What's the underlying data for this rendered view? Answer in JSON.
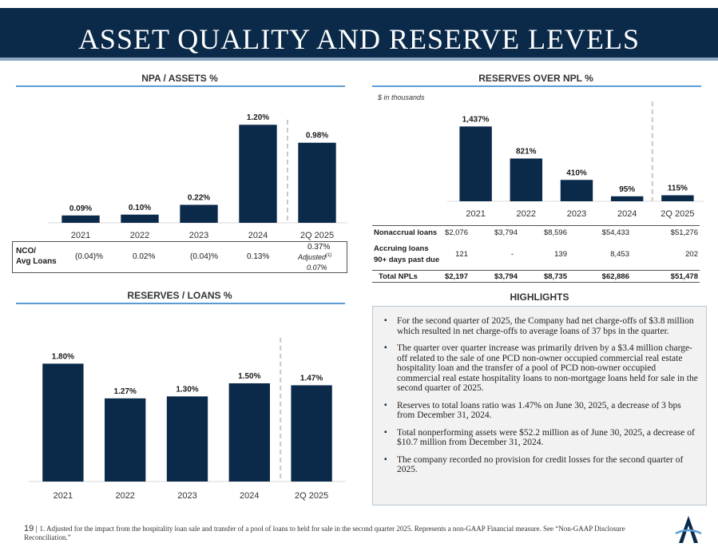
{
  "title": "ASSET QUALITY AND RESERVE LEVELS",
  "sections": {
    "npa_title": "NPA / ASSETS %",
    "reserves_npl_title": "RESERVES OVER NPL %",
    "reserves_loans_title": "RESERVES / LOANS %",
    "highlights_title": "HIGHLIGHTS",
    "in_thousands": "$ in thousands"
  },
  "chart_data": [
    {
      "type": "bar",
      "title": "NPA / ASSETS %",
      "categories": [
        "2021",
        "2022",
        "2023",
        "2024",
        "2Q 2025"
      ],
      "values": [
        0.09,
        0.1,
        0.22,
        1.2,
        0.98
      ],
      "labels": [
        "0.09%",
        "0.10%",
        "0.22%",
        "1.20%",
        "0.98%"
      ],
      "ylim": [
        0,
        1.3
      ],
      "color": "#0b2a4a"
    },
    {
      "type": "bar",
      "title": "RESERVES OVER NPL %",
      "categories": [
        "2021",
        "2022",
        "2023",
        "2024",
        "2Q 2025"
      ],
      "values": [
        1437,
        821,
        410,
        95,
        115
      ],
      "labels": [
        "1,437%",
        "821%",
        "410%",
        "95%",
        "115%"
      ],
      "ylim": [
        0,
        1550
      ],
      "color": "#0b2a4a"
    },
    {
      "type": "bar",
      "title": "RESERVES / LOANS %",
      "categories": [
        "2021",
        "2022",
        "2023",
        "2024",
        "2Q 2025"
      ],
      "values": [
        1.8,
        1.27,
        1.3,
        1.5,
        1.47
      ],
      "labels": [
        "1.80%",
        "1.27%",
        "1.30%",
        "1.50%",
        "1.47%"
      ],
      "ylim": [
        0,
        2.0
      ],
      "color": "#0b2a4a"
    }
  ],
  "nco": {
    "label_line1": "NCO/",
    "label_line2": "Avg Loans",
    "values": [
      "(0.04)%",
      "0.02%",
      "(0.04)%",
      "0.13%"
    ],
    "q2_value": "0.37%",
    "adjusted_label": "Adjusted",
    "adjusted_sup": "(1)",
    "adjusted_value": "0.07%"
  },
  "npl_table": {
    "rows": [
      {
        "label": "Nonaccrual loans",
        "values": [
          "$2,076",
          "$3,794",
          "$8,596",
          "$54,433",
          "$51,276"
        ]
      },
      {
        "label": "Accruing loans",
        "label2": "90+ days past due",
        "values": [
          "121",
          "-",
          "139",
          "8,453",
          "202"
        ]
      },
      {
        "label": "Total NPLs",
        "values": [
          "$2,197",
          "$3,794",
          "$8,735",
          "$62,886",
          "$51,478"
        ]
      }
    ]
  },
  "highlights": [
    "For the second quarter of 2025, the Company had net charge-offs of $3.8 million which resulted in net charge-offs to average loans of 37 bps in the quarter.",
    "The quarter over quarter increase was primarily driven by a $3.4 million charge-off related to the sale of one PCD non-owner occupied commercial real estate hospitality loan and the transfer of a pool of PCD non-owner occupied commercial real estate hospitality loans to non-mortgage loans held for sale in the second quarter of 2025.",
    "Reserves to total loans ratio was 1.47% on June 30, 2025, a decrease of 3 bps from December 31, 2024.",
    "Total nonperforming assets were $52.2 million as of June 30, 2025, a decrease of $10.7 million from December 31, 2024.",
    "The company recorded no provision for credit losses for the second quarter of 2025."
  ],
  "footer": {
    "page_number": "19",
    "note": "1. Adjusted for the impact from the hospitality loan sale and transfer of a pool of loans to held for sale in the second quarter 2025. Represents a non-GAAP Financial measure. See “Non-GAAP Disclosure Reconciliation.”"
  },
  "logo": {
    "letter": "A"
  },
  "colors": {
    "navy": "#0b2a4a",
    "accent_blue": "#5b9bd5",
    "dashed": "#c8c8c8"
  }
}
